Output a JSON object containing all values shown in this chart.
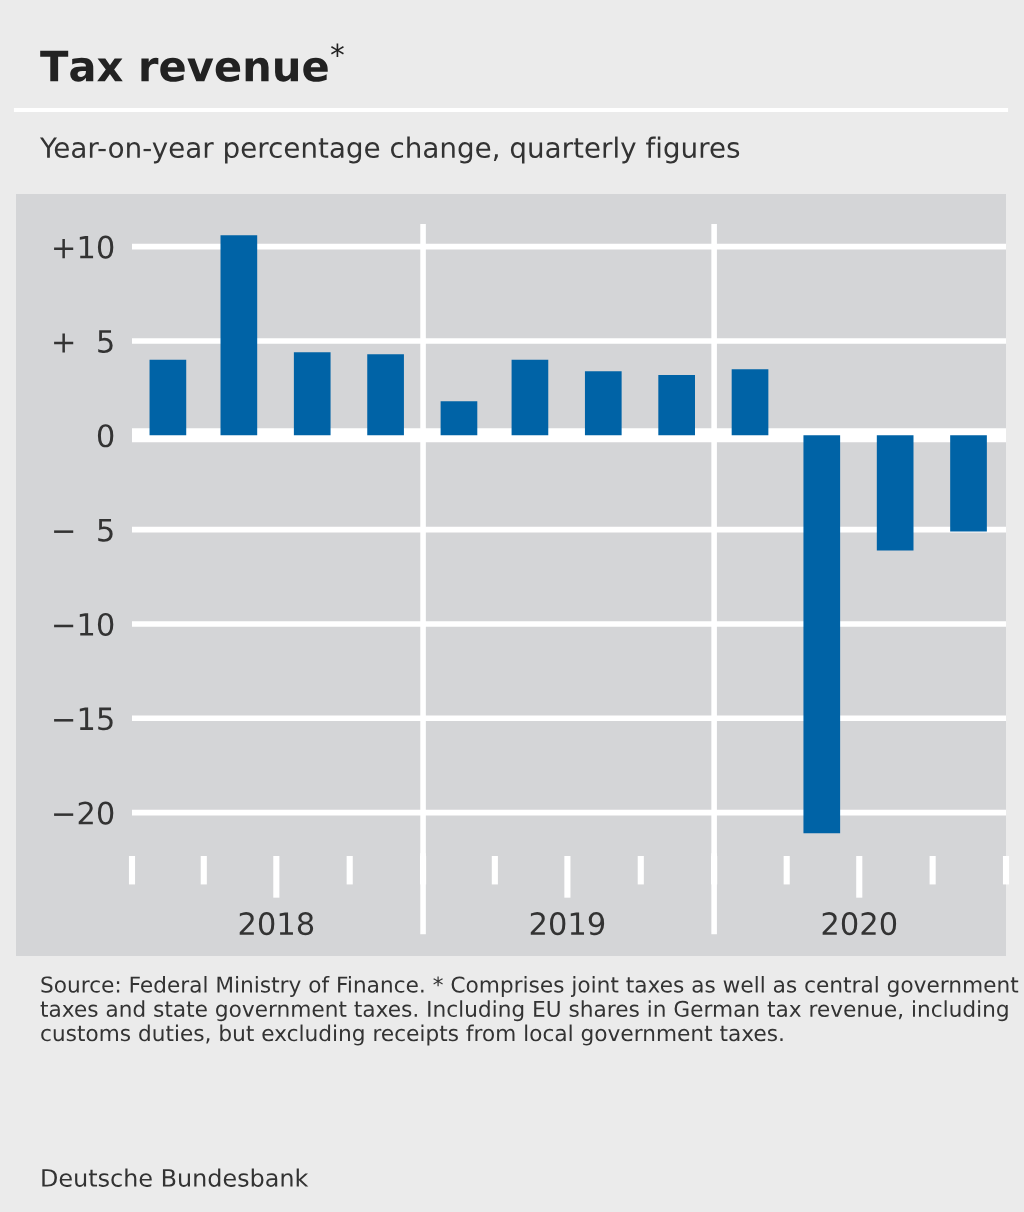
{
  "chart_data": {
    "type": "bar",
    "title": "Tax revenue$^{*}$",
    "subtitle": "Year-on-year percentage change, quarterly figures",
    "x": [
      "2018-02-15",
      "2018-05-15",
      "2018-08-15",
      "2018-11-15",
      "2019-02-15",
      "2019-05-15",
      "2019-08-15",
      "2019-11-15",
      "2020-02-15",
      "2020-05-15",
      "2020-08-15",
      "2020-11-15"
    ],
    "values": [
      4.0,
      10.6,
      4.4,
      4.3,
      1.8,
      4.0,
      3.4,
      3.2,
      3.5,
      -21.1,
      -6.1,
      -5.1
    ],
    "color": "#0063a6",
    "xlim": [
      "2018-01-01",
      "2021-01-01"
    ],
    "xticks": [
      {
        "value": "2018-01-01",
        "label": null
      },
      {
        "value": "2018-04-01",
        "label": null
      },
      {
        "value": "2018-07-01",
        "label": "2018"
      },
      {
        "value": "2018-10-01",
        "label": null
      },
      {
        "value": "2019-01-01",
        "label": null
      },
      {
        "value": "2019-04-01",
        "label": null
      },
      {
        "value": "2019-07-01",
        "label": "2019"
      },
      {
        "value": "2019-10-01",
        "label": null
      },
      {
        "value": "2020-01-01",
        "label": null
      },
      {
        "value": "2020-04-01",
        "label": null
      },
      {
        "value": "2020-07-01",
        "label": "2020"
      },
      {
        "value": "2020-10-01",
        "label": null
      },
      {
        "value": "2021-01-01",
        "label": null
      }
    ],
    "ylim": [
      -22.3,
      11.2
    ],
    "yticks": [
      {
        "value": 10,
        "label": "+10"
      },
      {
        "value": 5,
        "label": "+  5"
      },
      0,
      {
        "value": -5,
        "label": "−  5"
      },
      {
        "value": -10,
        "label": "−10"
      },
      {
        "value": -15,
        "label": "−15"
      },
      {
        "value": -20,
        "label": "−20"
      }
    ],
    "grid": "y",
    "ref_lines": [
      {
        "axis": "y",
        "value": 0,
        "label": null,
        "color": "#ffffff"
      },
      {
        "axis": "x",
        "value": "2019-01-01",
        "label": null,
        "color": "#ffffff"
      },
      {
        "axis": "x",
        "value": "2020-01-01",
        "label": null,
        "color": "#ffffff"
      }
    ],
    "annotations": [
      "Source: Federal Ministry of Finance. * Comprises joint taxes as well as central government taxes and state government taxes. Including EU shares in German tax revenue, including customs duties, but excluding receipts from local government taxes.",
      "Deutsche Bundesbank"
    ]
  }
}
